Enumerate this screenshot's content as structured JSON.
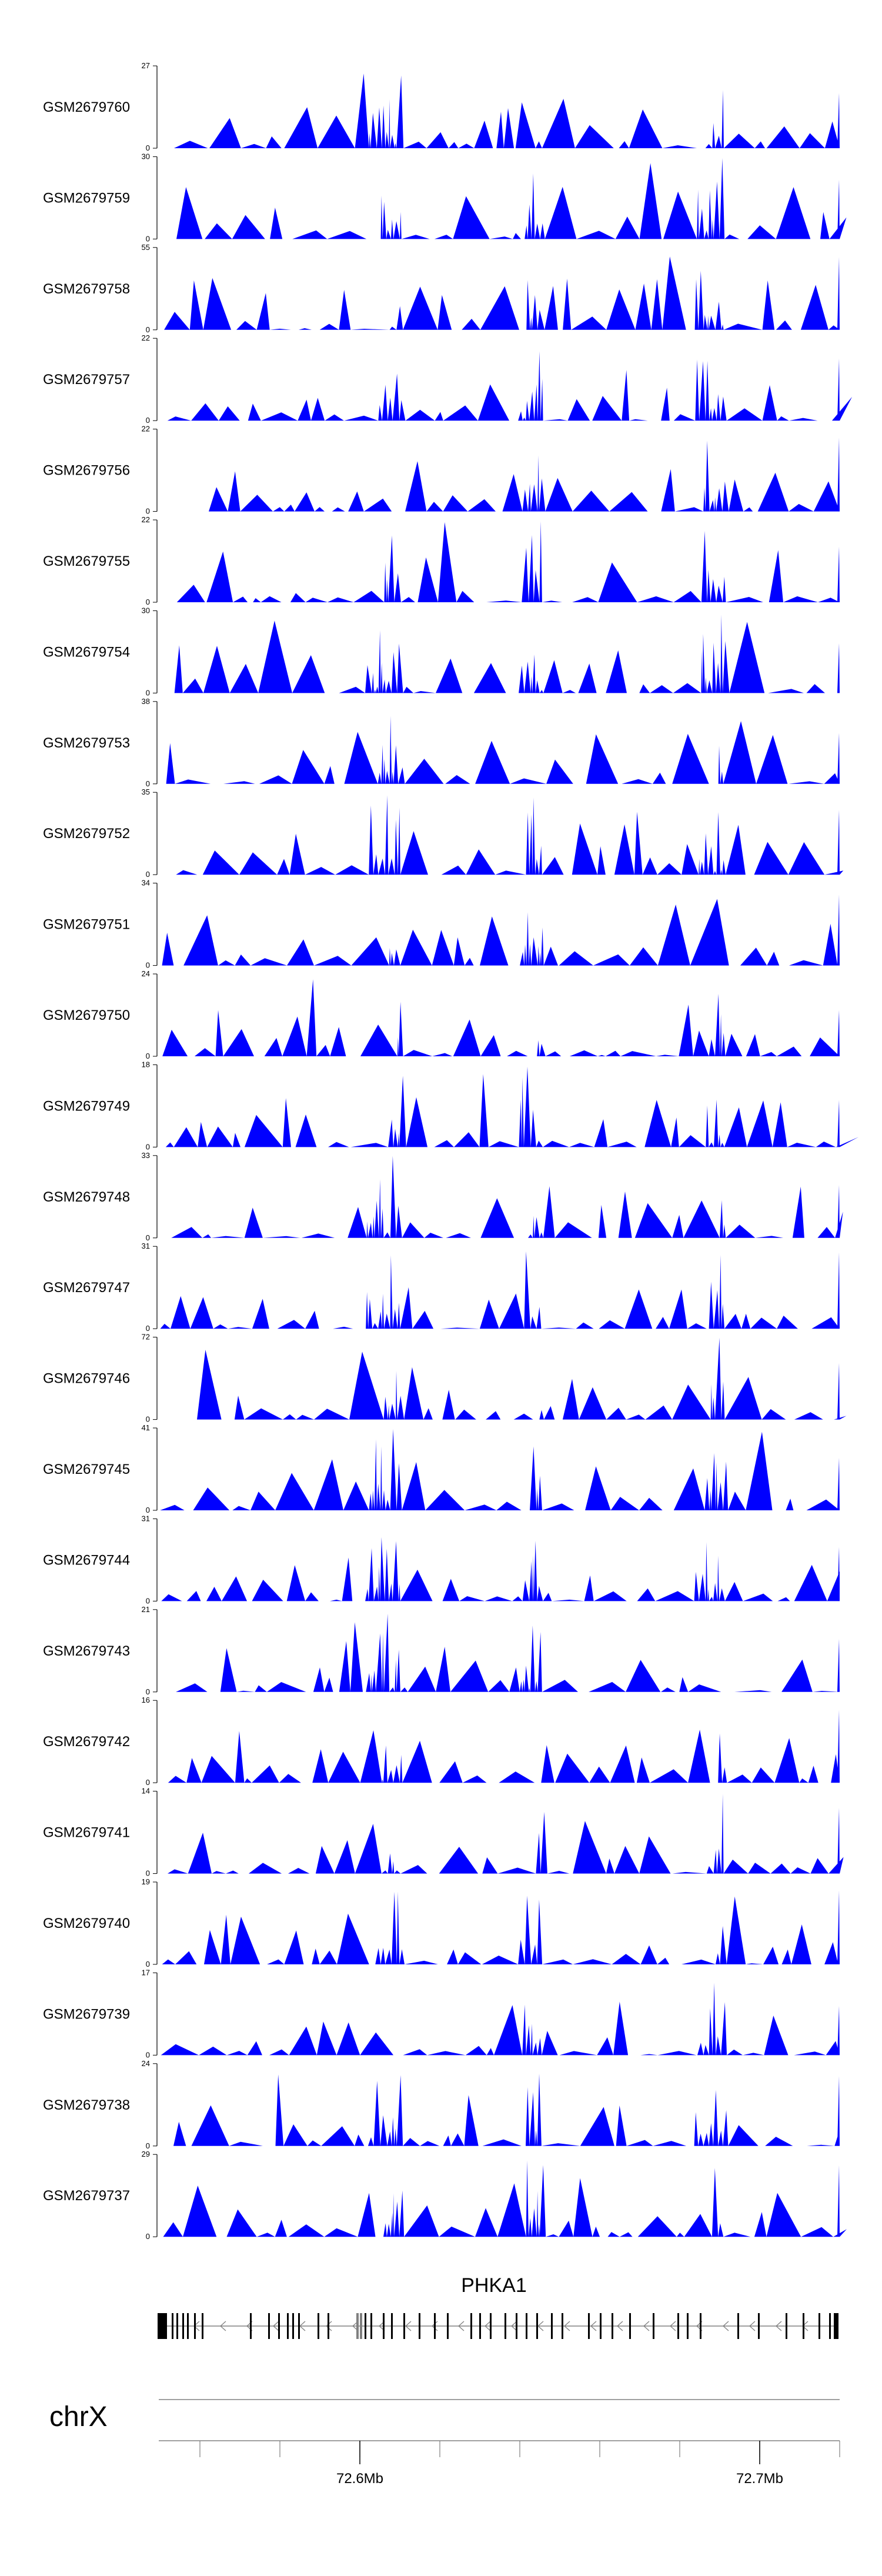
{
  "chart_data": {
    "type": "area",
    "color": "#0000FF",
    "tracks": [
      {
        "name": "GSM2679760",
        "ymax": 27,
        "ymin": 0
      },
      {
        "name": "GSM2679759",
        "ymax": 30,
        "ymin": 0
      },
      {
        "name": "GSM2679758",
        "ymax": 55,
        "ymin": 0
      },
      {
        "name": "GSM2679757",
        "ymax": 22,
        "ymin": 0
      },
      {
        "name": "GSM2679756",
        "ymax": 22,
        "ymin": 0
      },
      {
        "name": "GSM2679755",
        "ymax": 22,
        "ymin": 0
      },
      {
        "name": "GSM2679754",
        "ymax": 30,
        "ymin": 0
      },
      {
        "name": "GSM2679753",
        "ymax": 38,
        "ymin": 0
      },
      {
        "name": "GSM2679752",
        "ymax": 35,
        "ymin": 0
      },
      {
        "name": "GSM2679751",
        "ymax": 34,
        "ymin": 0
      },
      {
        "name": "GSM2679750",
        "ymax": 24,
        "ymin": 0
      },
      {
        "name": "GSM2679749",
        "ymax": 18,
        "ymin": 0
      },
      {
        "name": "GSM2679748",
        "ymax": 33,
        "ymin": 0
      },
      {
        "name": "GSM2679747",
        "ymax": 31,
        "ymin": 0
      },
      {
        "name": "GSM2679746",
        "ymax": 72,
        "ymin": 0
      },
      {
        "name": "GSM2679745",
        "ymax": 41,
        "ymin": 0
      },
      {
        "name": "GSM2679744",
        "ymax": 31,
        "ymin": 0
      },
      {
        "name": "GSM2679743",
        "ymax": 21,
        "ymin": 0
      },
      {
        "name": "GSM2679742",
        "ymax": 16,
        "ymin": 0
      },
      {
        "name": "GSM2679741",
        "ymax": 14,
        "ymin": 0
      },
      {
        "name": "GSM2679740",
        "ymax": 19,
        "ymin": 0
      },
      {
        "name": "GSM2679739",
        "ymax": 17,
        "ymin": 0
      },
      {
        "name": "GSM2679738",
        "ymax": 24,
        "ymin": 0
      },
      {
        "name": "GSM2679737",
        "ymax": 29,
        "ymin": 0
      }
    ],
    "gene": {
      "name": "PHKA1",
      "strand": "-"
    },
    "chromosome": "chrX",
    "xrange": [
      72.55,
      72.72
    ],
    "xticks": [
      72.6,
      72.7
    ],
    "xtick_labels": [
      "72.6Mb",
      "72.7Mb"
    ]
  }
}
